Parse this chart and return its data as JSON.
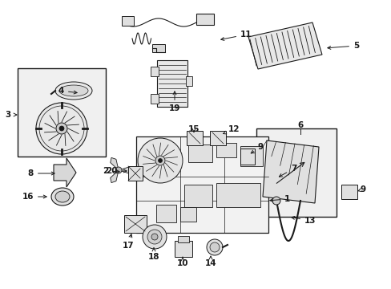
{
  "bg_color": "#ffffff",
  "line_color": "#1a1a1a",
  "fig_width": 4.89,
  "fig_height": 3.6,
  "dpi": 100,
  "font_size": 7.5,
  "lw": 0.75
}
